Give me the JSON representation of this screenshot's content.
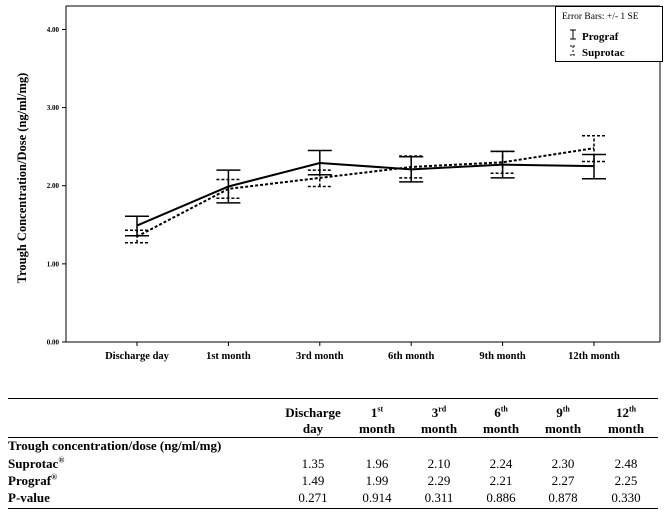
{
  "chart_data": {
    "type": "line",
    "categories": [
      "Discharge day",
      "1st month",
      "3rd month",
      "6th month",
      "9th month",
      "12th month"
    ],
    "series": [
      {
        "name": "Prograf",
        "values": [
          1.49,
          1.99,
          2.29,
          2.21,
          2.27,
          2.25
        ],
        "se_low": [
          1.36,
          1.78,
          2.14,
          2.05,
          2.1,
          2.09
        ],
        "se_high": [
          1.61,
          2.2,
          2.45,
          2.37,
          2.44,
          2.4
        ],
        "color": "#000000",
        "dash": "solid"
      },
      {
        "name": "Suprotac",
        "values": [
          1.35,
          1.96,
          2.1,
          2.24,
          2.3,
          2.48
        ],
        "se_low": [
          1.27,
          1.84,
          1.99,
          2.1,
          2.16,
          2.31
        ],
        "se_high": [
          1.43,
          2.08,
          2.2,
          2.38,
          2.44,
          2.64
        ],
        "color": "#000000",
        "dash": "dotted"
      }
    ],
    "ylabel": "Trough Concentration/Dose (ng/ml/mg)",
    "ylim": [
      0,
      4.3
    ],
    "yticks": [
      "0.00",
      "1.00",
      "2.00",
      "3.00",
      "4.00"
    ],
    "grid": false,
    "legend": {
      "title": "Error Bars: +/- 1 SE",
      "position": "top-right"
    }
  },
  "table": {
    "headers": [
      {
        "line1": "Discharge",
        "line2": "day"
      },
      {
        "line1": "1",
        "sup": "st",
        "line2": "month"
      },
      {
        "line1": "3",
        "sup": "rd",
        "line2": "month"
      },
      {
        "line1": "6",
        "sup": "th",
        "line2": "month"
      },
      {
        "line1": "9",
        "sup": "th",
        "line2": "month"
      },
      {
        "line1": "12",
        "sup": "th",
        "line2": "month"
      }
    ],
    "section_title": "Trough concentration/dose (ng/ml/mg)",
    "rows": [
      {
        "label": "Suprotac",
        "reg": "®",
        "values": [
          "1.35",
          "1.96",
          "2.10",
          "2.24",
          "2.30",
          "2.48"
        ]
      },
      {
        "label": "Prograf",
        "reg": "®",
        "values": [
          "1.49",
          "1.99",
          "2.29",
          "2.21",
          "2.27",
          "2.25"
        ]
      },
      {
        "label": "P-value",
        "reg": "",
        "values": [
          "0.271",
          "0.914",
          "0.311",
          "0.886",
          "0.878",
          "0.330"
        ]
      }
    ]
  }
}
